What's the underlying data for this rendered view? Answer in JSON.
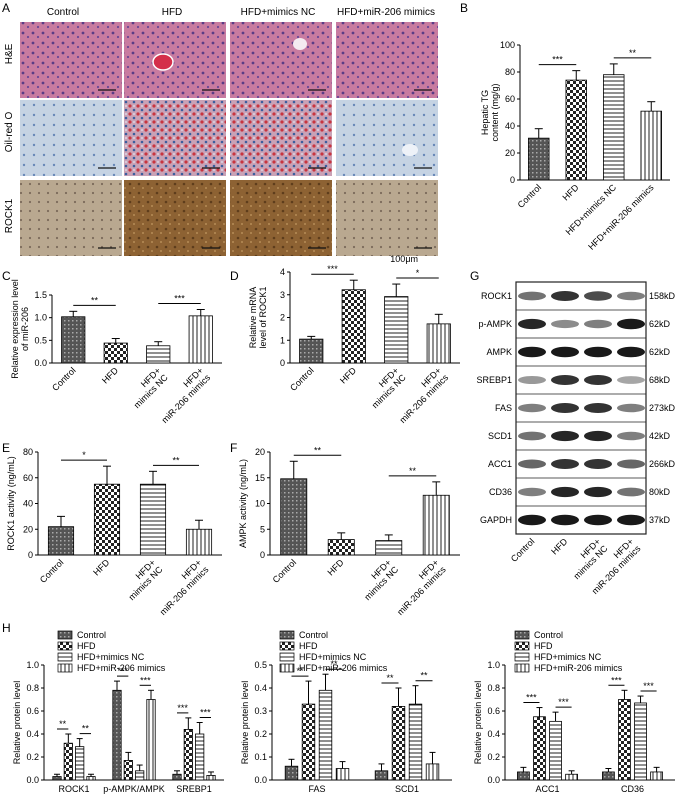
{
  "panel_letters": [
    "A",
    "B",
    "C",
    "D",
    "E",
    "F",
    "G",
    "H"
  ],
  "histology": {
    "columns": [
      "Control",
      "HFD",
      "HFD+mimics NC",
      "HFD+miR-206 mimics"
    ],
    "rows": [
      "H&E",
      "Oil-red O",
      "ROCK1"
    ],
    "scale_label": "100μm"
  },
  "colors": {
    "he": "#c26a95",
    "oil": "#b9c9dc",
    "oil_red": "#c83a43",
    "rock_ihc": "#a68a6a",
    "rock_ihc_dark": "#8b6535"
  },
  "western": {
    "proteins": [
      "ROCK1",
      "p-AMPK",
      "AMPK",
      "SREBP1",
      "FAS",
      "SCD1",
      "ACC1",
      "CD36",
      "GAPDH"
    ],
    "sizes": [
      "158kD",
      "62kD",
      "62kD",
      "68kD",
      "273kD",
      "42kD",
      "266kD",
      "80kD",
      "37kD"
    ],
    "lanes": [
      "Control",
      "HFD",
      "HFD+ mimics NC",
      "HFD+ miR-206 mimics"
    ]
  },
  "chart_data": [
    {
      "panel": "B",
      "type": "bar",
      "ylabel": "Hepatic TG content (mg/g)",
      "ylim": [
        0,
        100
      ],
      "yticks": [
        0,
        20,
        40,
        60,
        80,
        100
      ],
      "categories": [
        "Control",
        "HFD",
        "HFD+mimics NC",
        "HFD+miR-206 mimics"
      ],
      "values": [
        31,
        74,
        78,
        51
      ],
      "errors": [
        7,
        7,
        8,
        7
      ],
      "significance": [
        {
          "from": 0,
          "to": 1,
          "label": "***"
        },
        {
          "from": 2,
          "to": 3,
          "label": "**"
        }
      ]
    },
    {
      "panel": "C",
      "type": "bar",
      "ylabel": "Relative expression level of miR-206",
      "ylim": [
        0,
        1.5
      ],
      "yticks": [
        0.0,
        0.5,
        1.0,
        1.5
      ],
      "categories": [
        "Control",
        "HFD",
        "HFD+ mimics NC",
        "HFD+ miR-206 mimics"
      ],
      "values": [
        1.02,
        0.44,
        0.38,
        1.04
      ],
      "errors": [
        0.12,
        0.1,
        0.09,
        0.14
      ],
      "significance": [
        {
          "from": 0,
          "to": 1,
          "label": "**"
        },
        {
          "from": 2,
          "to": 3,
          "label": "***"
        }
      ]
    },
    {
      "panel": "D",
      "type": "bar",
      "ylabel": "Relative mRNA level of ROCK1",
      "ylim": [
        0,
        4
      ],
      "yticks": [
        0,
        1,
        2,
        3,
        4
      ],
      "categories": [
        "Control",
        "HFD",
        "HFD+ mimics NC",
        "HFD+ miR-206 mimics"
      ],
      "values": [
        1.05,
        3.22,
        2.92,
        1.72
      ],
      "errors": [
        0.12,
        0.42,
        0.55,
        0.42
      ],
      "significance": [
        {
          "from": 0,
          "to": 1,
          "label": "***"
        },
        {
          "from": 2,
          "to": 3,
          "label": "*"
        }
      ]
    },
    {
      "panel": "E",
      "type": "bar",
      "ylabel": "ROCK1 activity (ng/mL)",
      "ylim": [
        0,
        80
      ],
      "yticks": [
        0,
        20,
        40,
        60,
        80
      ],
      "categories": [
        "Control",
        "HFD",
        "HFD+ mimics NC",
        "HFD+ miR-206 mimics"
      ],
      "values": [
        22,
        55,
        55,
        20
      ],
      "errors": [
        8,
        14,
        10,
        7
      ],
      "significance": [
        {
          "from": 0,
          "to": 1,
          "label": "*"
        },
        {
          "from": 2,
          "to": 3,
          "label": "**"
        }
      ]
    },
    {
      "panel": "F",
      "type": "bar",
      "ylabel": "AMPK activity (ng/mL)",
      "ylim": [
        0,
        20
      ],
      "yticks": [
        0,
        5,
        10,
        15,
        20
      ],
      "categories": [
        "Control",
        "HFD",
        "HFD+ mimics NC",
        "HFD+ miR-206 mimics"
      ],
      "values": [
        14.8,
        3.0,
        2.8,
        11.6
      ],
      "errors": [
        3.4,
        1.3,
        1.1,
        2.6
      ],
      "significance": [
        {
          "from": 0,
          "to": 1,
          "label": "**"
        },
        {
          "from": 2,
          "to": 3,
          "label": "**"
        }
      ]
    },
    {
      "panel": "H1",
      "type": "bar",
      "ylabel": "Relative protein level",
      "ylim": [
        0,
        1.0
      ],
      "yticks": [
        0.0,
        0.2,
        0.4,
        0.6,
        0.8,
        1.0
      ],
      "categories": [
        "ROCK1",
        "p-AMPK/AMPK",
        "SREBP1"
      ],
      "legend": [
        "Control",
        "HFD",
        "HFD+mimics NC",
        "HFD+miR-206 mimics"
      ],
      "series": [
        {
          "name": "Control",
          "values": [
            0.03,
            0.78,
            0.05
          ],
          "errors": [
            0.02,
            0.08,
            0.03
          ]
        },
        {
          "name": "HFD",
          "values": [
            0.32,
            0.17,
            0.44
          ],
          "errors": [
            0.08,
            0.07,
            0.1
          ]
        },
        {
          "name": "HFD+mimics NC",
          "values": [
            0.29,
            0.08,
            0.4
          ],
          "errors": [
            0.07,
            0.05,
            0.1
          ]
        },
        {
          "name": "HFD+miR-206 mimics",
          "values": [
            0.03,
            0.7,
            0.04
          ],
          "errors": [
            0.02,
            0.08,
            0.03
          ]
        }
      ],
      "significance": [
        {
          "group": 0,
          "from": 0,
          "to": 1,
          "label": "**"
        },
        {
          "group": 0,
          "from": 2,
          "to": 3,
          "label": "**"
        },
        {
          "group": 1,
          "from": 0,
          "to": 1,
          "label": "***"
        },
        {
          "group": 1,
          "from": 2,
          "to": 3,
          "label": "***"
        },
        {
          "group": 2,
          "from": 0,
          "to": 1,
          "label": "***"
        },
        {
          "group": 2,
          "from": 2,
          "to": 3,
          "label": "***"
        }
      ]
    },
    {
      "panel": "H2",
      "type": "bar",
      "ylabel": "Relative protein level",
      "ylim": [
        0,
        0.5
      ],
      "yticks": [
        0.0,
        0.1,
        0.2,
        0.3,
        0.4,
        0.5
      ],
      "categories": [
        "FAS",
        "SCD1"
      ],
      "legend": [
        "Control",
        "HFD",
        "HFD+mimics NC",
        "HFD+miR-206 mimics"
      ],
      "series": [
        {
          "name": "Control",
          "values": [
            0.06,
            0.04
          ],
          "errors": [
            0.03,
            0.03
          ]
        },
        {
          "name": "HFD",
          "values": [
            0.33,
            0.32
          ],
          "errors": [
            0.1,
            0.08
          ]
        },
        {
          "name": "HFD+mimics NC",
          "values": [
            0.39,
            0.33
          ],
          "errors": [
            0.07,
            0.08
          ]
        },
        {
          "name": "HFD+miR-206 mimics",
          "values": [
            0.05,
            0.07
          ],
          "errors": [
            0.03,
            0.05
          ]
        }
      ],
      "significance": [
        {
          "group": 0,
          "from": 0,
          "to": 1,
          "label": "**"
        },
        {
          "group": 0,
          "from": 2,
          "to": 3,
          "label": "**"
        },
        {
          "group": 1,
          "from": 0,
          "to": 1,
          "label": "**"
        },
        {
          "group": 1,
          "from": 2,
          "to": 3,
          "label": "**"
        }
      ]
    },
    {
      "panel": "H3",
      "type": "bar",
      "ylabel": "Relative protein level",
      "ylim": [
        0,
        1.0
      ],
      "yticks": [
        0.0,
        0.2,
        0.4,
        0.6,
        0.8,
        1.0
      ],
      "categories": [
        "ACC1",
        "CD36"
      ],
      "legend": [
        "Control",
        "HFD",
        "HFD+mimics NC",
        "HFD+miR-206 mimics"
      ],
      "series": [
        {
          "name": "Control",
          "values": [
            0.07,
            0.07
          ],
          "errors": [
            0.04,
            0.03
          ]
        },
        {
          "name": "HFD",
          "values": [
            0.55,
            0.7
          ],
          "errors": [
            0.08,
            0.08
          ]
        },
        {
          "name": "HFD+mimics NC",
          "values": [
            0.51,
            0.67
          ],
          "errors": [
            0.08,
            0.06
          ]
        },
        {
          "name": "HFD+miR-206 mimics",
          "values": [
            0.05,
            0.07
          ],
          "errors": [
            0.03,
            0.04
          ]
        }
      ],
      "significance": [
        {
          "group": 0,
          "from": 0,
          "to": 1,
          "label": "***"
        },
        {
          "group": 0,
          "from": 2,
          "to": 3,
          "label": "***"
        },
        {
          "group": 1,
          "from": 0,
          "to": 1,
          "label": "***"
        },
        {
          "group": 1,
          "from": 2,
          "to": 3,
          "label": "***"
        }
      ]
    }
  ]
}
